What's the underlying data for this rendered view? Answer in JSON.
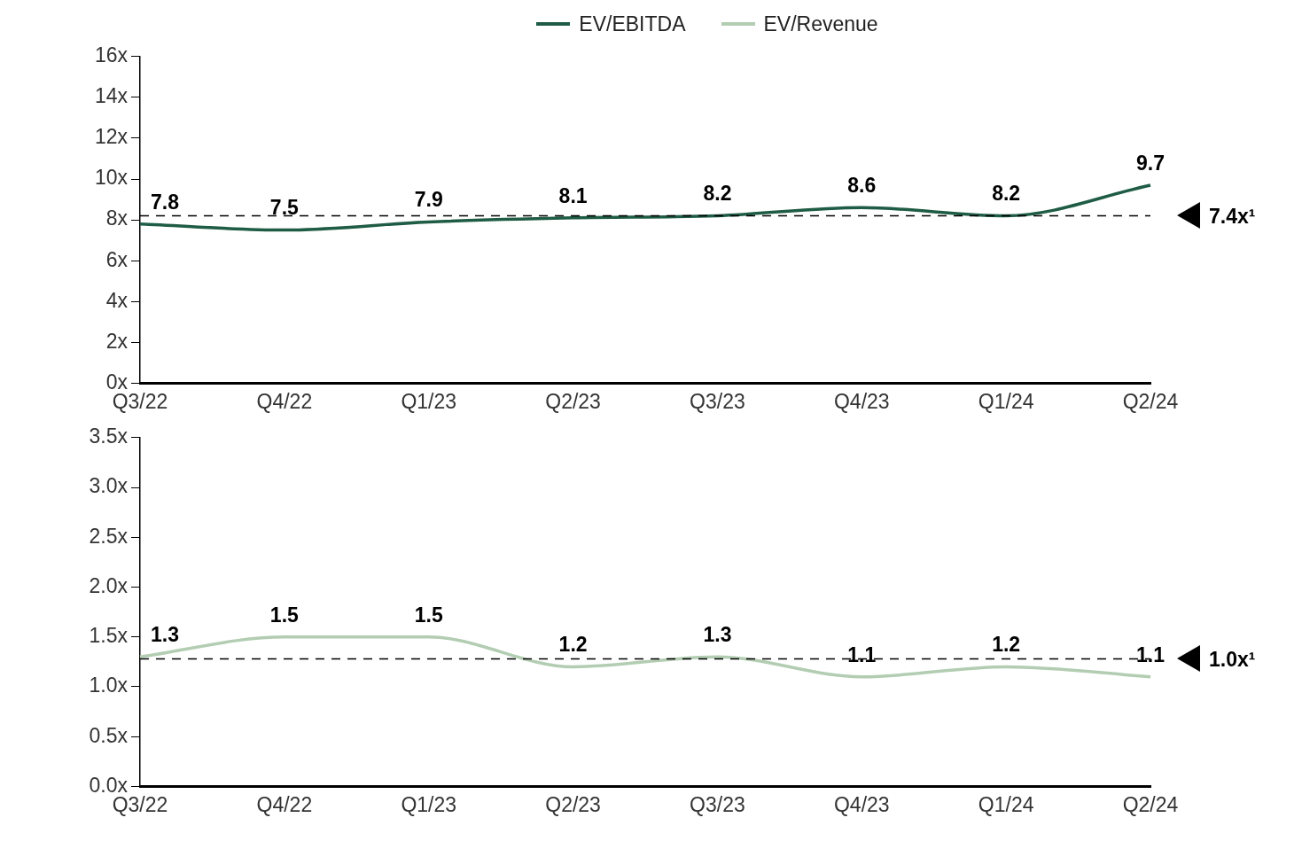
{
  "chart_data": [
    {
      "type": "line",
      "categories": [
        "Q3/22",
        "Q4/22",
        "Q1/23",
        "Q2/23",
        "Q3/23",
        "Q4/23",
        "Q1/24",
        "Q2/24"
      ],
      "series": [
        {
          "name": "EV/EBITDA",
          "color": "#1f5c45",
          "values": [
            7.8,
            7.5,
            7.9,
            8.1,
            8.2,
            8.6,
            8.2,
            9.7
          ]
        }
      ],
      "ylim": [
        0,
        16
      ],
      "yticks": [
        {
          "value": 0,
          "label": "0x"
        },
        {
          "value": 2,
          "label": "2x"
        },
        {
          "value": 4,
          "label": "4x"
        },
        {
          "value": 6,
          "label": "6x"
        },
        {
          "value": 8,
          "label": "8x"
        },
        {
          "value": 10,
          "label": "10x"
        },
        {
          "value": 12,
          "label": "12x"
        },
        {
          "value": 14,
          "label": "14x"
        },
        {
          "value": 16,
          "label": "16x"
        }
      ],
      "ref_lines": [
        {
          "axis": "y",
          "value": 8.2,
          "label": "7.4x¹",
          "color": "#000000",
          "line_style": "dashed"
        }
      ],
      "data_labels": true,
      "grid": false,
      "legend": "top",
      "marker": "none",
      "line_style": "solid"
    },
    {
      "type": "line",
      "categories": [
        "Q3/22",
        "Q4/22",
        "Q1/23",
        "Q2/23",
        "Q3/23",
        "Q4/23",
        "Q1/24",
        "Q2/24"
      ],
      "series": [
        {
          "name": "EV/Revenue",
          "color": "#b3cdb3",
          "values": [
            1.3,
            1.5,
            1.5,
            1.2,
            1.3,
            1.1,
            1.2,
            1.1
          ]
        }
      ],
      "ylim": [
        0,
        3.5
      ],
      "yticks": [
        {
          "value": 0,
          "label": "0.0x"
        },
        {
          "value": 0.5,
          "label": "0.5x"
        },
        {
          "value": 1,
          "label": "1.0x"
        },
        {
          "value": 1.5,
          "label": "1.5x"
        },
        {
          "value": 2,
          "label": "2.0x"
        },
        {
          "value": 2.5,
          "label": "2.5x"
        },
        {
          "value": 3,
          "label": "3.0x"
        },
        {
          "value": 3.5,
          "label": "3.5x"
        }
      ],
      "ref_lines": [
        {
          "axis": "y",
          "value": 1.28,
          "label": "1.0x¹",
          "color": "#000000",
          "line_style": "dashed"
        }
      ],
      "data_labels": true,
      "grid": false,
      "legend": "top",
      "marker": "none",
      "line_style": "solid"
    }
  ]
}
